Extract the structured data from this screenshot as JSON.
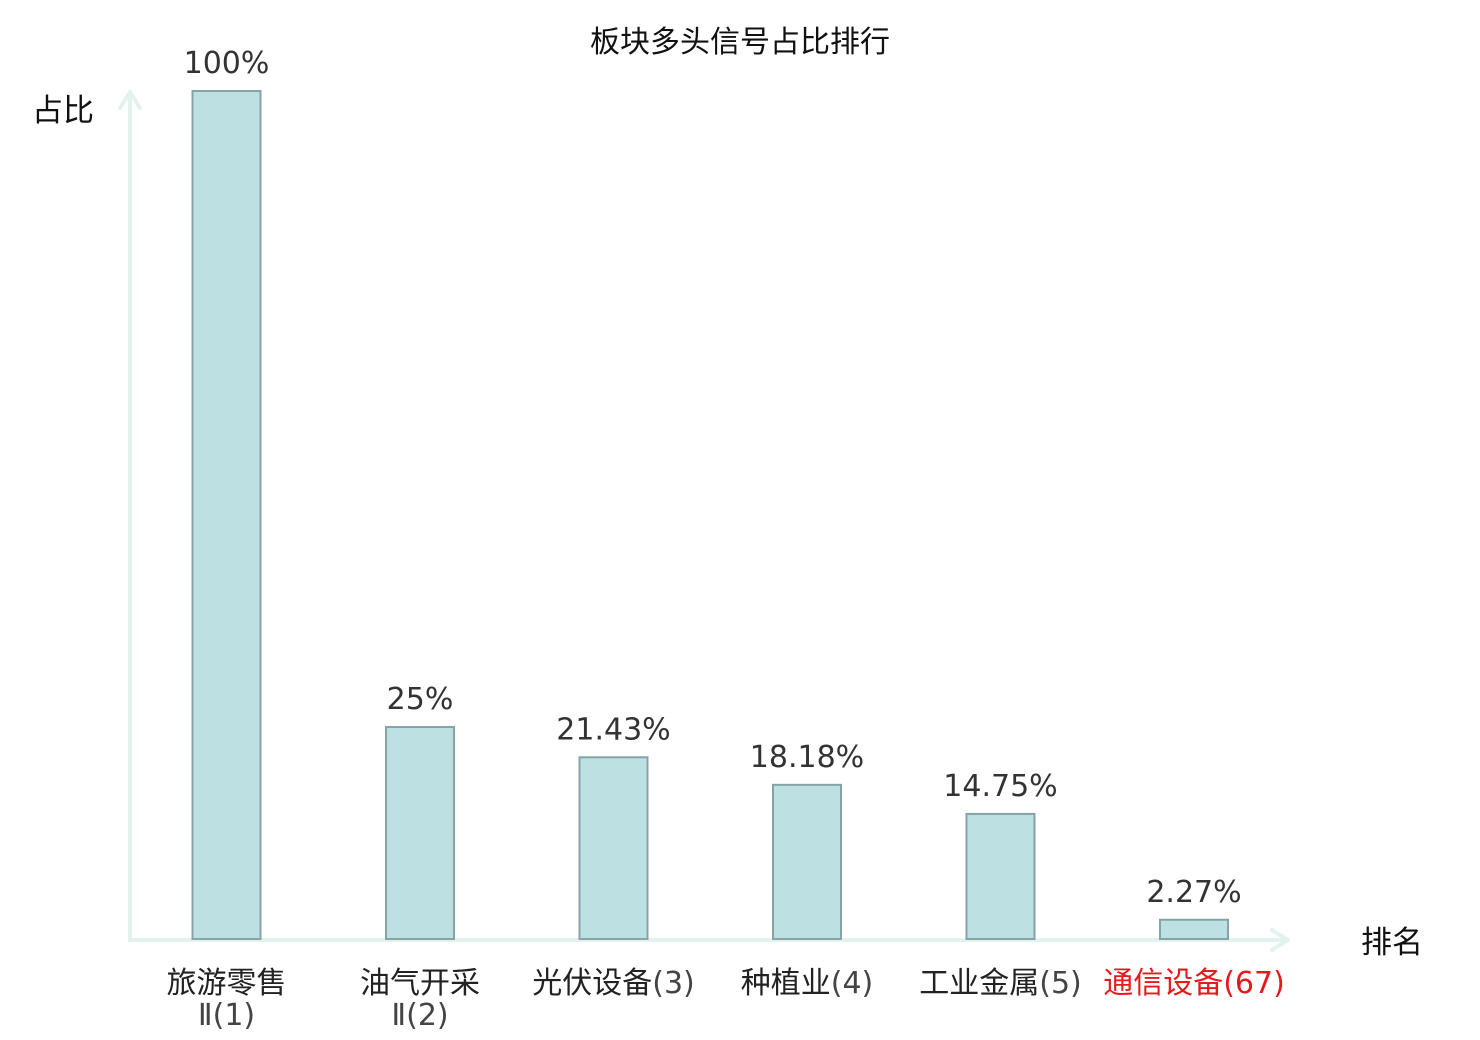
{
  "chart_data": {
    "type": "bar",
    "title": "板块多头信号占比排行",
    "ylabel": "占比",
    "xlabel": "排名",
    "ylim": [
      0,
      100
    ],
    "grid": false,
    "categories": [
      {
        "name": "旅游零售",
        "name2": "Ⅱ",
        "rank": "(1)",
        "value": 100,
        "label": "100%",
        "highlight": false
      },
      {
        "name": "油气开采",
        "name2": "Ⅱ",
        "rank": "(2)",
        "value": 25,
        "label": "25%",
        "highlight": false
      },
      {
        "name": "光伏设备",
        "name2": "",
        "rank": "(3)",
        "value": 21.43,
        "label": "21.43%",
        "highlight": false
      },
      {
        "name": "种植业",
        "name2": "",
        "rank": "(4)",
        "value": 18.18,
        "label": "18.18%",
        "highlight": false
      },
      {
        "name": "工业金属",
        "name2": "",
        "rank": "(5)",
        "value": 14.75,
        "label": "14.75%",
        "highlight": false
      },
      {
        "name": "通信设备",
        "name2": "",
        "rank": "(67)",
        "value": 2.27,
        "label": "2.27%",
        "highlight": true
      }
    ],
    "colors": {
      "bar_fill": "#bde0e3",
      "bar_stroke": "#86a3a6",
      "axis": "#e3f2ef",
      "highlight": "#e41a1c"
    }
  }
}
